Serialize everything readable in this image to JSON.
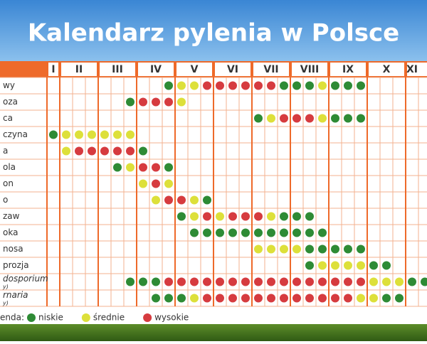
{
  "title": "Kalendarz pylenia w Polsce",
  "months": [
    "I",
    "II",
    "III",
    "IV",
    "V",
    "VI",
    "VII",
    "VIII",
    "IX",
    "X",
    "XI"
  ],
  "rows": [
    {
      "label": "wy",
      "levels": [
        null,
        null,
        null,
        null,
        null,
        null,
        null,
        null,
        null,
        1,
        2,
        2,
        3,
        3,
        3,
        3,
        3,
        3,
        1,
        1,
        1,
        2,
        1,
        1,
        1,
        null,
        null,
        null,
        null,
        null
      ]
    },
    {
      "label": "oza",
      "levels": [
        null,
        null,
        null,
        null,
        null,
        null,
        1,
        3,
        3,
        3,
        2,
        null,
        null,
        null,
        null,
        null,
        null,
        null,
        null,
        null,
        null,
        null,
        null,
        null,
        null,
        null,
        null,
        null,
        null,
        null
      ]
    },
    {
      "label": "ca",
      "levels": [
        null,
        null,
        null,
        null,
        null,
        null,
        null,
        null,
        null,
        null,
        null,
        null,
        null,
        null,
        null,
        null,
        1,
        2,
        3,
        3,
        3,
        2,
        1,
        1,
        1,
        null,
        null,
        null,
        null,
        null
      ]
    },
    {
      "label": "czyna",
      "levels": [
        1,
        2,
        2,
        2,
        2,
        2,
        2,
        null,
        null,
        null,
        null,
        null,
        null,
        null,
        null,
        null,
        null,
        null,
        null,
        null,
        null,
        null,
        null,
        null,
        null,
        null,
        null,
        null,
        null,
        null
      ]
    },
    {
      "label": "a",
      "levels": [
        null,
        2,
        3,
        3,
        3,
        3,
        3,
        1,
        null,
        null,
        null,
        null,
        null,
        null,
        null,
        null,
        null,
        null,
        null,
        null,
        null,
        null,
        null,
        null,
        null,
        null,
        null,
        null,
        null,
        null
      ]
    },
    {
      "label": "ola",
      "levels": [
        null,
        null,
        null,
        null,
        null,
        1,
        2,
        3,
        3,
        1,
        null,
        null,
        null,
        null,
        null,
        null,
        null,
        null,
        null,
        null,
        null,
        null,
        null,
        null,
        null,
        null,
        null,
        null,
        null,
        null
      ]
    },
    {
      "label": "on",
      "levels": [
        null,
        null,
        null,
        null,
        null,
        null,
        null,
        2,
        3,
        2,
        null,
        null,
        null,
        null,
        null,
        null,
        null,
        null,
        null,
        null,
        null,
        null,
        null,
        null,
        null,
        null,
        null,
        null,
        null,
        null
      ]
    },
    {
      "label": "o",
      "levels": [
        null,
        null,
        null,
        null,
        null,
        null,
        null,
        null,
        2,
        3,
        3,
        2,
        1,
        null,
        null,
        null,
        null,
        null,
        null,
        null,
        null,
        null,
        null,
        null,
        null,
        null,
        null,
        null,
        null,
        null
      ]
    },
    {
      "label": "zaw",
      "levels": [
        null,
        null,
        null,
        null,
        null,
        null,
        null,
        null,
        null,
        null,
        1,
        2,
        3,
        2,
        3,
        3,
        3,
        2,
        1,
        1,
        1,
        null,
        null,
        null,
        null,
        null,
        null,
        null,
        null,
        null
      ]
    },
    {
      "label": "oka",
      "levels": [
        null,
        null,
        null,
        null,
        null,
        null,
        null,
        null,
        null,
        null,
        null,
        1,
        1,
        1,
        1,
        1,
        1,
        1,
        1,
        1,
        1,
        1,
        null,
        null,
        null,
        null,
        null,
        null,
        null,
        null
      ]
    },
    {
      "label": "nosa",
      "levels": [
        null,
        null,
        null,
        null,
        null,
        null,
        null,
        null,
        null,
        null,
        null,
        null,
        null,
        null,
        null,
        null,
        2,
        2,
        2,
        2,
        1,
        1,
        1,
        1,
        1,
        null,
        null,
        null,
        null,
        null
      ]
    },
    {
      "label": "prozja",
      "levels": [
        null,
        null,
        null,
        null,
        null,
        null,
        null,
        null,
        null,
        null,
        null,
        null,
        null,
        null,
        null,
        null,
        null,
        null,
        null,
        null,
        1,
        2,
        2,
        2,
        2,
        1,
        1,
        null,
        null,
        null
      ]
    },
    {
      "label": "dosporium",
      "sublabel": "y)",
      "levels": [
        null,
        null,
        null,
        null,
        null,
        null,
        1,
        1,
        1,
        3,
        3,
        3,
        3,
        3,
        3,
        3,
        3,
        3,
        3,
        3,
        3,
        3,
        3,
        3,
        3,
        2,
        2,
        2,
        1,
        1
      ]
    },
    {
      "label": "rnaria",
      "sublabel": "y)",
      "levels": [
        null,
        null,
        null,
        null,
        null,
        null,
        null,
        null,
        1,
        1,
        1,
        2,
        3,
        3,
        3,
        3,
        3,
        3,
        3,
        3,
        3,
        3,
        3,
        3,
        2,
        2,
        1,
        1,
        null,
        null
      ]
    }
  ],
  "legend": {
    "title": "enda:",
    "items": [
      {
        "level": 1,
        "label": "niskie",
        "color": "#2e8b35"
      },
      {
        "level": 2,
        "label": "średnie",
        "color": "#dde03a"
      },
      {
        "level": 3,
        "label": "wysokie",
        "color": "#d63b3f"
      }
    ]
  }
}
